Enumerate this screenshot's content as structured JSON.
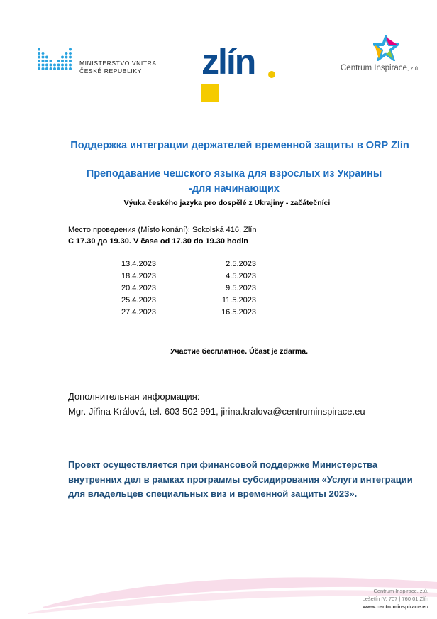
{
  "logos": {
    "ministry": {
      "line1": "MINISTERSTVO VNITRA",
      "line2": "ČESKÉ REPUBLIKY",
      "color": "#29a3e0"
    },
    "zlin": {
      "text": "zlín",
      "color": "#0d4b8e",
      "accent": "#f5cb00"
    },
    "centrum": {
      "name": "Centrum Inspirace",
      "suffix": ", z.ú."
    }
  },
  "title": "Поддержка интеграции держателей временной защиты в ORP Zlín",
  "subtitle": "Преподавание чешского языка для взрослых из Украины -для начинающих",
  "subtitle_cz": "Výuka českého jazyka pro dospělé z Ukrajiny  - začátečníci",
  "place": "Место проведения (Místo konání):  Sokolská 416, Zlín",
  "time": "С 17.30 до 19.30.  V čase  od 17.30 do 19.30 hodin",
  "dates_col1": [
    "13.4.2023",
    "18.4.2023",
    "20.4.2023",
    "25.4.2023",
    "27.4.2023"
  ],
  "dates_col2": [
    "2.5.2023",
    "4.5.2023",
    "9.5.2023",
    "11.5.2023",
    "16.5.2023"
  ],
  "free": "Участие бесплатное. Účast je zdarma.",
  "info": {
    "label": "Дополнительная информация:",
    "contact": "Mgr. Jiřina Králová, tel. 603 502 991,   jirina.kralova@centruminspirace.eu"
  },
  "project": "Проект осуществляется при финансовой поддержке Министерства внутренних дел в рамках программы субсидирования «Услуги интеграции для владельцев специальных виз и временной защиты 2023».",
  "footer": {
    "line1": "Centrum Inspirace, z.ú.",
    "line2": "Lešetín IV. 707 | 760 01 Zlín",
    "line3": "www.centruminspirace.eu"
  },
  "colors": {
    "heading": "#1f6fc0",
    "project": "#1f4e79"
  }
}
